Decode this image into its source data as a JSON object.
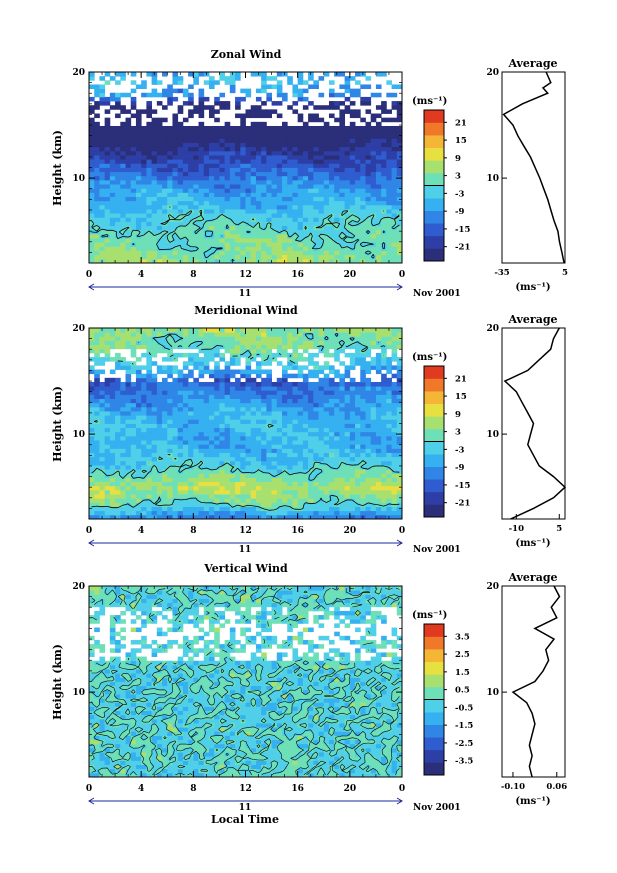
{
  "figure": {
    "xlabel": "Local Time",
    "date_label": "Nov 2001",
    "day_label": "11",
    "colors": {
      "palette": [
        "#2b2f7a",
        "#2d3fa6",
        "#2f5ccf",
        "#2f86e6",
        "#35b0f0",
        "#50d0e8",
        "#6ee0b8",
        "#a8e070",
        "#e8e040",
        "#f5b535",
        "#f07828",
        "#e03a20"
      ],
      "contour": "#000000",
      "missing": "#ffffff"
    }
  },
  "chart_data": [
    {
      "id": "zonal",
      "type": "heatmap",
      "title": "Zonal Wind",
      "ylabel": "Height (km)",
      "xlim": [
        0,
        24
      ],
      "ylim": [
        2,
        20
      ],
      "xticks": [
        "0",
        "4",
        "8",
        "12",
        "16",
        "20",
        "0"
      ],
      "yticks": [
        "20",
        "10"
      ],
      "colorbar": {
        "unit": "(ms⁻¹)",
        "range": [
          -24,
          24
        ],
        "ticks": [
          "21",
          "15",
          "9",
          "3",
          "-3",
          "-9",
          "-15",
          "-21"
        ],
        "contour_at": 0
      },
      "profile_key": [
        [
          2,
          4.4
        ],
        [
          5,
          0.5
        ],
        [
          8,
          -6
        ],
        [
          10,
          -11
        ],
        [
          11.5,
          -16
        ],
        [
          13,
          -21
        ],
        [
          15,
          -28
        ],
        [
          16,
          -34
        ],
        [
          17,
          -22
        ],
        [
          18,
          -6
        ],
        [
          18.5,
          -9
        ],
        [
          19,
          -4
        ],
        [
          20,
          -7
        ]
      ],
      "profile": {
        "title": "Average",
        "xlim": [
          -35,
          5
        ],
        "xticks": [
          "-35",
          "5"
        ],
        "xlabel": "(ms⁻¹)",
        "heights": [
          2,
          3,
          4,
          5,
          6,
          7,
          8,
          9,
          10,
          11,
          12,
          13,
          14,
          15,
          16,
          17,
          18,
          18.5,
          19,
          20
        ],
        "values": [
          4.4,
          3.0,
          1.5,
          0.5,
          -2,
          -4,
          -6,
          -8.5,
          -11,
          -14,
          -17,
          -21,
          -25,
          -28,
          -34,
          -22,
          -6,
          -9,
          -4,
          -7
        ]
      }
    },
    {
      "id": "meridional",
      "type": "heatmap",
      "title": "Meridional Wind",
      "ylabel": "Height (km)",
      "xlim": [
        0,
        24
      ],
      "ylim": [
        2,
        20
      ],
      "xticks": [
        "0",
        "4",
        "8",
        "12",
        "16",
        "20",
        "0"
      ],
      "yticks": [
        "20",
        "10"
      ],
      "colorbar": {
        "unit": "(ms⁻¹)",
        "range": [
          -24,
          24
        ],
        "ticks": [
          "21",
          "15",
          "9",
          "3",
          "-3",
          "-9",
          "-15",
          "-21"
        ],
        "contour_at": 0
      },
      "profile_key": [
        [
          2,
          -12
        ],
        [
          3.5,
          2
        ],
        [
          5,
          7
        ],
        [
          7,
          -2
        ],
        [
          9,
          -6
        ],
        [
          11,
          -4
        ],
        [
          13,
          -8
        ],
        [
          15,
          -14
        ],
        [
          16,
          -6
        ],
        [
          17,
          -2
        ],
        [
          18,
          2
        ],
        [
          19,
          3
        ],
        [
          20,
          5
        ]
      ],
      "profile": {
        "title": "Average",
        "xlim": [
          -15,
          7
        ],
        "xticks": [
          "-10",
          "5"
        ],
        "xlabel": "(ms⁻¹)",
        "heights": [
          2,
          3,
          4,
          5,
          6,
          7,
          8,
          9,
          10,
          11,
          12,
          13,
          14,
          15,
          16,
          17,
          18,
          19,
          20
        ],
        "values": [
          -12,
          -4,
          3,
          7,
          3,
          -2,
          -4,
          -6,
          -5,
          -4,
          -6,
          -8,
          -10,
          -14,
          -6,
          -2,
          2,
          3,
          5
        ]
      }
    },
    {
      "id": "vertical",
      "type": "heatmap",
      "title": "Vertical Wind",
      "ylabel": "Height (km)",
      "xlim": [
        0,
        24
      ],
      "ylim": [
        2,
        20
      ],
      "xticks": [
        "0",
        "4",
        "8",
        "12",
        "16",
        "20",
        "0"
      ],
      "yticks": [
        "20",
        "10"
      ],
      "colorbar": {
        "unit": "(ms⁻¹)",
        "range": [
          -4,
          4
        ],
        "ticks": [
          "3.5",
          "2.5",
          "1.5",
          "0.5",
          "-0.5",
          "-1.5",
          "-2.5",
          "-3.5"
        ],
        "contour_at": 0
      },
      "profile_key": [
        [
          2,
          -0.03
        ],
        [
          5,
          -0.04
        ],
        [
          7,
          -0.02
        ],
        [
          9,
          -0.05
        ],
        [
          10,
          -0.1
        ],
        [
          11,
          -0.02
        ],
        [
          12,
          0.01
        ],
        [
          13,
          0.03
        ],
        [
          14,
          0.02
        ],
        [
          15,
          0.05
        ],
        [
          16,
          -0.02
        ],
        [
          17,
          0.06
        ],
        [
          18,
          0.04
        ],
        [
          19,
          0.07
        ],
        [
          20,
          0.05
        ]
      ],
      "profile": {
        "title": "Average",
        "xlim": [
          -0.14,
          0.09
        ],
        "xticks": [
          "-0.10",
          "0.06"
        ],
        "xlabel": "(ms⁻¹)",
        "heights": [
          2,
          3,
          4,
          5,
          6,
          7,
          8,
          9,
          10,
          11,
          12,
          13,
          14,
          15,
          16,
          17,
          18,
          19,
          20
        ],
        "values": [
          -0.03,
          -0.04,
          -0.03,
          -0.04,
          -0.03,
          -0.02,
          -0.03,
          -0.05,
          -0.1,
          -0.02,
          0.01,
          0.03,
          0.02,
          0.05,
          -0.02,
          0.06,
          0.04,
          0.07,
          0.05
        ]
      }
    }
  ]
}
